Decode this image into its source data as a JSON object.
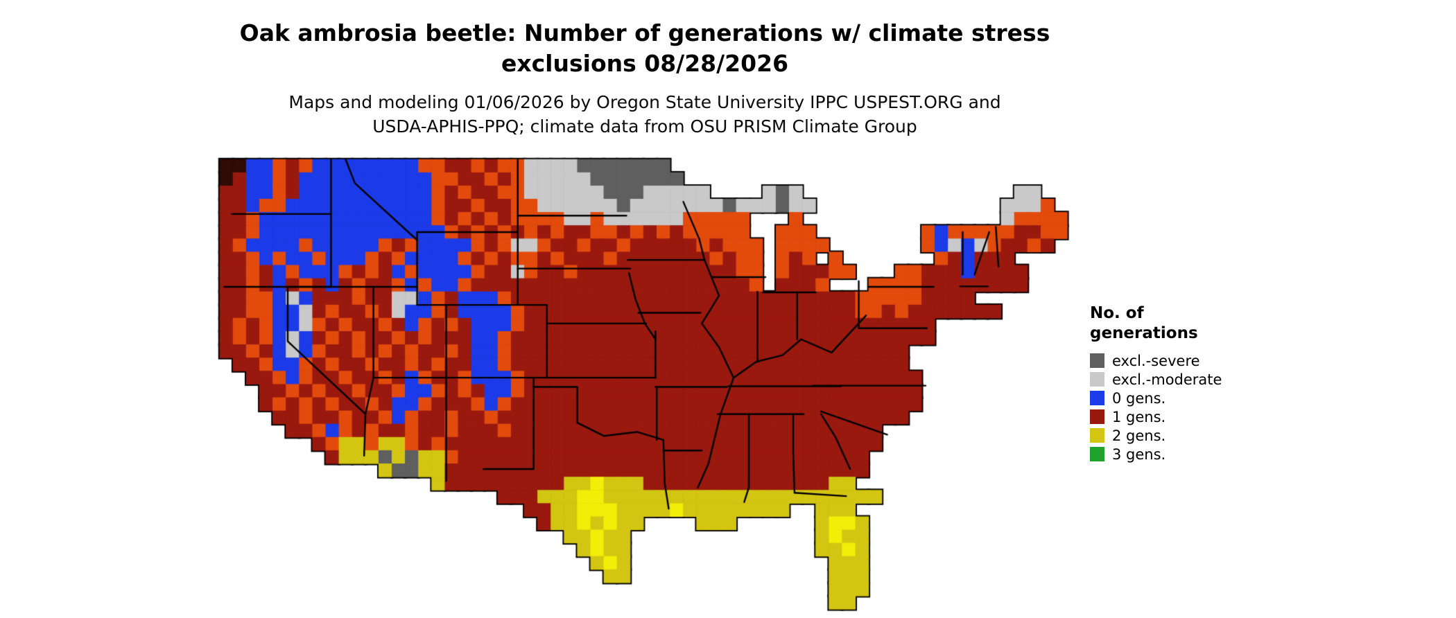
{
  "title": {
    "line1": "Oak ambrosia beetle: Number of generations w/ climate stress",
    "line2": "exclusions 08/28/2026"
  },
  "subtitle": {
    "line1": "Maps and modeling 01/06/2026 by Oregon State University IPPC USPEST.ORG and",
    "line2": "USDA-APHIS-PPQ; climate data from OSU PRISM Climate Group"
  },
  "legend": {
    "title_line1": "No. of",
    "title_line2": "generations",
    "items": [
      {
        "label": "excl.-severe",
        "color": "#5f5f5f"
      },
      {
        "label": "excl.-moderate",
        "color": "#c9c9c9"
      },
      {
        "label": "0 gens.",
        "color": "#1c3be8"
      },
      {
        "label": "1 gens.",
        "color": "#9a190f"
      },
      {
        "label": "2 gens.",
        "color": "#d3c612"
      },
      {
        "label": "3 gens.",
        "color": "#1fa32c"
      }
    ]
  },
  "map": {
    "palette": {
      "K": "#2f0a06",
      "S": "#5f5f5f",
      "M": "#c9c9c9",
      "B": "#1c3be8",
      "R": "#9a190f",
      "O": "#e34b0d",
      "Y": "#d3c612",
      "X": "#f3ee07",
      "G": "#1fa32c"
    },
    "grid": [
      "KKBBOROBBBBBBBBOORROROOMMMMSSSSSSS",
      "KRBBORBBBBBBBBBBOORROROMMMMMSSSSSSS",
      "RRBBORBBBBBBBBBBORORROOMMMMMMSSSMMMMM....MSM................MM..",
      "RRBOOBBBBBBBBBBBORRORROOMMMMMMSMMMMMMMSMMMSMM..............MMMO.",
      "RROBBBBBBBBBBBBBOROROROOOOMMOMMMMMMOOOOO...O...............MOOOO",
      "RROBBBBBBBBBBBBBBORORORORORROOROROROOOOO..OOO........OBOOOOORROO",
      "ROBBBBOBBBBBOROBBBBOROMMORRORRORRRRROROOO.OOOO.......OBMBMORROR.",
      "RROBOBBOBBBOROBBBBOROROORORRRORRRRRRROROO.ORO.O.......ORBRRR....",
      "RRORBOBBBORORBOBBBBORRMORRORRRRRRRRRRRROO.ORRROO...OORRRBRRRR...",
      "RRORBRORBRORROBOBBORRRRRRRRRRRRRRRRRRRRRO.RRRO...OOOORRRRRRRR...",
      "RROOBMBRRRORRMMBORBBBORRRRRRRRRRRRRRRRRRRRRRRRRROOOOORRRR.......",
      "RROOBBMRORRORMBBORBBBBORRRRRRRRRRRRRRRRRRRRRRRRROORORRRRRRR.....",
      "ROROBBMORORRORBORORBBBORRRRRRRRRRRRRRRRRRRRRRRRRRRRRRR.........",
      "ROROBMBRORORRORORRRBBORRRRRRRRRRRRRRRRRRRRRRRRRRRRRRRR.........",
      "RRORBMBORRORORORRORBBORRRRRRRRRRRRRRRRRRRRRRRRRRRRRR..........",
      ".RROBBORORRORRORORRBBORRRRRRRRRRRRRRRRRRRRRRRRRRRRRR..........",
      "..RROBORRORRORBORROBBBORRRRRRRRRRRRRRRRRRRRRRRRRRRRRR..........",
      "...RRORORRORROBBORORBBORRRRRRRRRRRRRRRRRRRRRRRRRRRRRR..........",
      "...RORORORRORBBORRROBORRRRRRRRRRRRRRRRRRRRRRRRRRRRRRR..........",
      "....RRORRORROBORRORRORRRRRRRRRRRRRRRRRRRRRRRRRRRRRRR...........",
      ".....RROBORORRORRORRRORRRRRRRRRRRRRRRRRRRRRRRRRRRR............",
      ".......ROYYOYYORORRRRRRRRRRRRRRRRRRRRRRRRRRRRRRRRR.............",
      "........RYYYSYSYYORRRRRRRRRRRRRRRRRRRRRRRRRRRRRRR...............",
      "............YSSYYRRRRRRRRRRRRRRRRRRRRRRRRRRRRRRRR...............",
      "................YRRRRRRRRRYYXYYYRRRRRRRRRRRRRRYY................",
      ".....................RRRYYYXXYYYYYYYYYYYYYYYYYYYYY................",
      ".......................RRYYXXXYYYYXYYYYYYYY..YYY................",
      "........................RYYXYXYY....YYY......YXXY...............",
      "..........................YYXYY..............YXYY...............",
      "...........................YXYY..............YYXY...............",
      "............................YXY...............YYY...............",
      ".............................YY...............YYY...............",
      "..............................................YYY...............",
      "..............................................YY................"
    ],
    "state_borders": [
      [
        [
          0.9,
          4.13
        ],
        [
          8.4,
          4.13
        ]
      ],
      [
        [
          0.33,
          9.63
        ],
        [
          8.4,
          9.63
        ]
      ],
      [
        [
          8.4,
          0
        ],
        [
          8.4,
          9.63
        ]
      ],
      [
        [
          5.13,
          9.63
        ],
        [
          5.13,
          13.75
        ],
        [
          11.0,
          19.25
        ],
        [
          10.9,
          22.4
        ]
      ],
      [
        [
          11.6,
          9.63
        ],
        [
          11.6,
          16.5
        ],
        [
          11.0,
          19.25
        ]
      ],
      [
        [
          5.13,
          9.63
        ],
        [
          14.9,
          9.63
        ]
      ],
      [
        [
          9.5,
          0
        ],
        [
          10.2,
          1.8
        ],
        [
          14.9,
          6.1
        ]
      ],
      [
        [
          14.9,
          5.5
        ],
        [
          14.9,
          11.0
        ]
      ],
      [
        [
          14.9,
          5.5
        ],
        [
          22.5,
          5.5
        ]
      ],
      [
        [
          22.5,
          0
        ],
        [
          22.5,
          11.0
        ]
      ],
      [
        [
          14.9,
          11.0
        ],
        [
          24.7,
          11.0
        ]
      ],
      [
        [
          22.5,
          4.25
        ],
        [
          30.7,
          4.25
        ]
      ],
      [
        [
          22.5,
          8.25
        ],
        [
          31.0,
          8.25
        ]
      ],
      [
        [
          24.7,
          12.4
        ],
        [
          32.2,
          12.4
        ]
      ],
      [
        [
          11.6,
          16.5
        ],
        [
          32.9,
          16.5
        ]
      ],
      [
        [
          17.1,
          11.0
        ],
        [
          17.1,
          24.3
        ]
      ],
      [
        [
          24.7,
          11.0
        ],
        [
          24.7,
          16.5
        ]
      ],
      [
        [
          23.7,
          16.5
        ],
        [
          23.7,
          23.4
        ],
        [
          19.9,
          23.4
        ]
      ],
      [
        [
          23.7,
          17.2
        ],
        [
          27.0,
          17.2
        ],
        [
          27.0,
          19.9
        ],
        [
          29.0,
          20.9
        ],
        [
          31.5,
          20.6
        ],
        [
          33.5,
          21.2
        ]
      ],
      [
        [
          33.0,
          17.2
        ],
        [
          33.0,
          21.2
        ]
      ],
      [
        [
          30.8,
          7.6
        ],
        [
          36.6,
          7.6
        ]
      ],
      [
        [
          31.6,
          11.6
        ],
        [
          36.3,
          11.6
        ]
      ],
      [
        [
          36.6,
          7.6
        ],
        [
          37.7,
          10.3
        ],
        [
          36.4,
          12.4
        ],
        [
          37.7,
          14.2
        ],
        [
          38.8,
          16.5
        ],
        [
          37.8,
          19.3
        ],
        [
          36.9,
          23.0
        ],
        [
          36.1,
          24.8
        ]
      ],
      [
        [
          37.2,
          8.9
        ],
        [
          41.2,
          8.9
        ]
      ],
      [
        [
          40.6,
          10.0
        ],
        [
          40.6,
          15.3
        ]
      ],
      [
        [
          43.6,
          10.05
        ],
        [
          43.6,
          13.6
        ]
      ],
      [
        [
          48.25,
          9.2
        ],
        [
          48.25,
          12.76
        ]
      ],
      [
        [
          48.25,
          12.76
        ],
        [
          53.4,
          12.76
        ]
      ],
      [
        [
          48.8,
          11.8
        ],
        [
          46.2,
          14.6
        ],
        [
          43.9,
          13.6
        ],
        [
          42.5,
          14.8
        ],
        [
          40.5,
          15.3
        ],
        [
          38.8,
          16.5
        ]
      ],
      [
        [
          38.4,
          17.15
        ],
        [
          46.9,
          17.15
        ]
      ],
      [
        [
          37.6,
          19.25
        ],
        [
          44.1,
          19.25
        ]
      ],
      [
        [
          44.8,
          17.1
        ],
        [
          53.3,
          17.1
        ]
      ],
      [
        [
          39.95,
          19.25
        ],
        [
          39.95,
          24.8
        ],
        [
          39.6,
          25.9
        ]
      ],
      [
        [
          43.3,
          19.25
        ],
        [
          43.3,
          22.1
        ],
        [
          43.4,
          25.2
        ]
      ],
      [
        [
          43.4,
          25.2
        ],
        [
          47.3,
          25.45
        ]
      ],
      [
        [
          45.4,
          19.25
        ],
        [
          46.5,
          21.0
        ],
        [
          47.6,
          23.4
        ]
      ],
      [
        [
          45.4,
          19.05
        ],
        [
          50.4,
          20.8
        ]
      ],
      [
        [
          33.5,
          21.2
        ],
        [
          33.6,
          24.5
        ],
        [
          33.9,
          26.4
        ]
      ],
      [
        [
          33.5,
          22.0
        ],
        [
          36.4,
          22.0
        ]
      ],
      [
        [
          32.9,
          17.2
        ],
        [
          38.3,
          17.2
        ]
      ],
      [
        [
          49.0,
          9.63
        ],
        [
          53.9,
          9.63
        ]
      ],
      [
        [
          32.9,
          13.0
        ],
        [
          32.9,
          16.5
        ]
      ],
      [
        [
          30.9,
          8.6
        ],
        [
          31.4,
          10.6
        ],
        [
          32.1,
          12.4
        ],
        [
          32.9,
          13.6
        ]
      ],
      [
        [
          35.0,
          3.2
        ],
        [
          36.2,
          6.0
        ],
        [
          36.6,
          7.6
        ]
      ],
      [
        [
          41.0,
          10.05
        ],
        [
          45.0,
          10.05
        ]
      ],
      [
        [
          56.1,
          5.5
        ],
        [
          56.1,
          8.7
        ]
      ],
      [
        [
          58.1,
          5.5
        ],
        [
          57.0,
          8.7
        ]
      ],
      [
        [
          58.6,
          5.1
        ],
        [
          58.8,
          8.1
        ]
      ],
      [
        [
          55.9,
          9.6
        ],
        [
          58.0,
          9.6
        ]
      ]
    ]
  }
}
